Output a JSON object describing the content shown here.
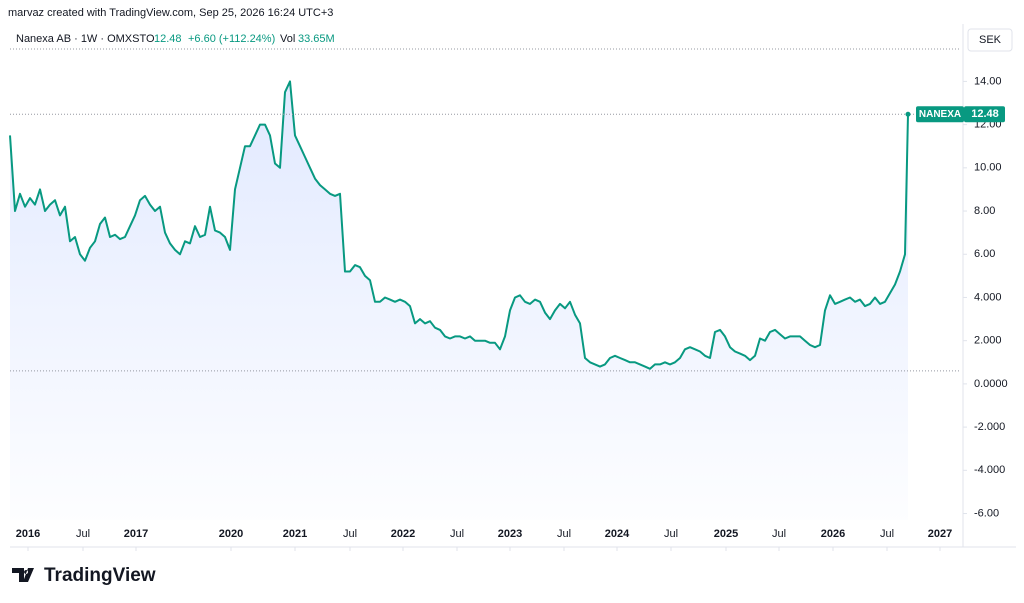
{
  "header": {
    "credit": "marvaz created with TradingView.com, Sep 25, 2026 16:24 UTC+3",
    "symbol": "Nanexa AB · 1W · OMXSTO",
    "price": "12.48",
    "change": "+6.60 (+112.24%)",
    "vol_label": "Vol",
    "vol": "33.65M",
    "currency": "SEK"
  },
  "brand": "TradingView",
  "chart_data": {
    "type": "area",
    "x": [
      0,
      1,
      2,
      3,
      4,
      5,
      6,
      7,
      8,
      9,
      10,
      11,
      12,
      13,
      14,
      15,
      16,
      17,
      18,
      19,
      20,
      21,
      22,
      23,
      24,
      25,
      26,
      27,
      28,
      29,
      30,
      31,
      32,
      33,
      34,
      35,
      36,
      37,
      38,
      39,
      40,
      41,
      42,
      43,
      44,
      45,
      46,
      47,
      48,
      49,
      50,
      51,
      52,
      53,
      54,
      55,
      56,
      57,
      58,
      59,
      60,
      61,
      62,
      63,
      64,
      65,
      66,
      67,
      68,
      69,
      70,
      71,
      72,
      73,
      74,
      75,
      76,
      77,
      78,
      79,
      80,
      81,
      82,
      83,
      84,
      85,
      86,
      87,
      88,
      89,
      90,
      91,
      92,
      93,
      94,
      95,
      96,
      97,
      98,
      99,
      100,
      101,
      102,
      103,
      104,
      105,
      106,
      107,
      108,
      109,
      110,
      111,
      112,
      113,
      114,
      115,
      116,
      117,
      118,
      119,
      120,
      121,
      122,
      123,
      124,
      125,
      126,
      127,
      128,
      129,
      130,
      131,
      132,
      133,
      134,
      135,
      136,
      137,
      138,
      139,
      140,
      141,
      142,
      143,
      144,
      145,
      146,
      147,
      148,
      149,
      150,
      151,
      152,
      153,
      154,
      155,
      156,
      157,
      158,
      159,
      160,
      161,
      162,
      163,
      164,
      165,
      166,
      167,
      168,
      169,
      170,
      171,
      172,
      173,
      174,
      175,
      176,
      177,
      178,
      179,
      179.6
    ],
    "series": [
      {
        "name": "NANEXA",
        "color": "#089981",
        "value_label": "12.48",
        "values": [
          11.5,
          8.0,
          8.8,
          8.2,
          8.6,
          8.3,
          9.0,
          8.0,
          8.3,
          8.5,
          7.8,
          8.2,
          6.6,
          6.8,
          6.0,
          5.7,
          6.3,
          6.6,
          7.4,
          7.7,
          6.8,
          6.9,
          6.7,
          6.8,
          7.3,
          7.8,
          8.5,
          8.7,
          8.3,
          8.0,
          8.2,
          7.0,
          6.5,
          6.2,
          6.0,
          6.6,
          6.5,
          7.3,
          6.8,
          6.9,
          8.2,
          7.1,
          7.0,
          6.8,
          6.2,
          9.0,
          10.0,
          11.0,
          11.0,
          11.5,
          12.0,
          12.0,
          11.5,
          10.2,
          10.0,
          13.5,
          14.0,
          11.5,
          11.0,
          10.5,
          10.0,
          9.5,
          9.2,
          9.0,
          8.8,
          8.7,
          8.8,
          5.2,
          5.2,
          5.5,
          5.4,
          5.0,
          4.8,
          3.8,
          3.8,
          4.0,
          3.9,
          3.8,
          3.9,
          3.8,
          3.6,
          2.8,
          3.0,
          2.8,
          2.9,
          2.6,
          2.5,
          2.2,
          2.1,
          2.2,
          2.2,
          2.1,
          2.2,
          2.0,
          2.0,
          2.0,
          1.9,
          1.9,
          1.6,
          2.2,
          3.4,
          4.0,
          4.1,
          3.8,
          3.7,
          3.9,
          3.8,
          3.3,
          3.0,
          3.4,
          3.7,
          3.5,
          3.8,
          3.2,
          2.8,
          1.2,
          1.0,
          0.9,
          0.8,
          0.9,
          1.2,
          1.3,
          1.2,
          1.1,
          1.0,
          1.0,
          0.9,
          0.8,
          0.7,
          0.9,
          0.9,
          1.0,
          0.9,
          1.0,
          1.2,
          1.6,
          1.7,
          1.6,
          1.5,
          1.3,
          1.2,
          2.4,
          2.5,
          2.2,
          1.7,
          1.5,
          1.4,
          1.3,
          1.1,
          1.3,
          2.1,
          2.0,
          2.4,
          2.5,
          2.3,
          2.1,
          2.2,
          2.2,
          2.2,
          2.0,
          1.8,
          1.7,
          1.8,
          3.4,
          4.1,
          3.7,
          3.8,
          3.9,
          4.0,
          3.8,
          3.9,
          3.6,
          3.7,
          4.0,
          3.7,
          3.8,
          4.2,
          4.6,
          5.2,
          6.0,
          12.48
        ]
      }
    ],
    "reference_line": 0.6,
    "xlim": [
      0,
      190
    ],
    "xticks": [
      {
        "value": 3.6,
        "label": "2016"
      },
      {
        "value": 14.6,
        "label": "Jul"
      },
      {
        "value": 25.2,
        "label": "2017"
      },
      {
        "value": 44.2,
        "label": "2020"
      },
      {
        "value": 57,
        "label": "2021"
      },
      {
        "value": 68,
        "label": "Jul"
      },
      {
        "value": 78.6,
        "label": "2022"
      },
      {
        "value": 89.4,
        "label": "Jul"
      },
      {
        "value": 100,
        "label": "2023"
      },
      {
        "value": 110.8,
        "label": "Jul"
      },
      {
        "value": 121.4,
        "label": "2024"
      },
      {
        "value": 132.2,
        "label": "Jul"
      },
      {
        "value": 143.2,
        "label": "2025"
      },
      {
        "value": 153.8,
        "label": "Jul"
      },
      {
        "value": 164.6,
        "label": "2026"
      },
      {
        "value": 175.4,
        "label": "Jul"
      },
      {
        "value": 186,
        "label": "2027"
      }
    ],
    "ylim": [
      -6.3,
      15.5
    ],
    "yticks": [
      {
        "value": 14,
        "label": "14.00"
      },
      {
        "value": 12,
        "label": "12.00"
      },
      {
        "value": 10,
        "label": "10.00"
      },
      {
        "value": 8,
        "label": "8.00"
      },
      {
        "value": 6,
        "label": "6.00"
      },
      {
        "value": 4,
        "label": "4.000"
      },
      {
        "value": 2,
        "label": "2.000"
      },
      {
        "value": 0,
        "label": "0.0000"
      },
      {
        "value": -2,
        "label": "-2.000"
      },
      {
        "value": -4,
        "label": "-4.000"
      },
      {
        "value": -6,
        "label": "-6.00"
      }
    ]
  }
}
